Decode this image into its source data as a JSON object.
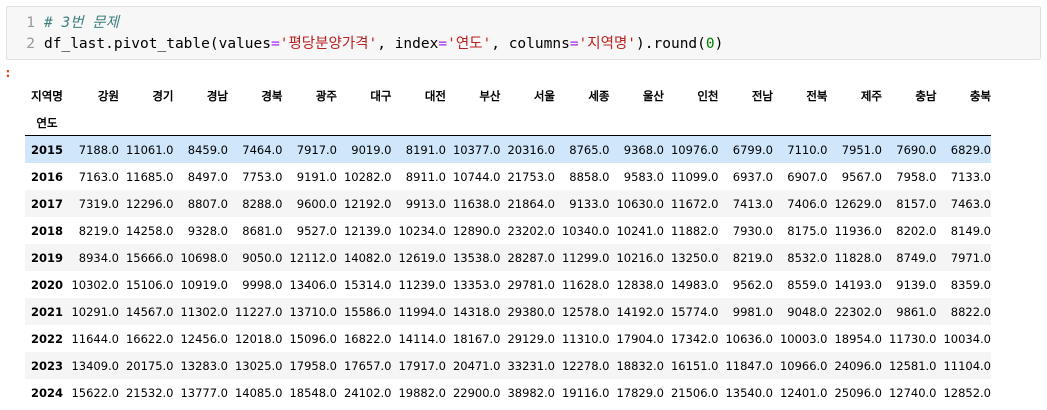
{
  "code": {
    "line_numbers": [
      "1",
      "2"
    ],
    "comment": "# 3번 문제",
    "line2": {
      "obj": "df_last",
      "dot1": ".",
      "method": "pivot_table",
      "open": "(",
      "kw_values": "values",
      "eq": "=",
      "s_values": "'평당분양가격'",
      "comma1": ", ",
      "kw_index": "index",
      "s_index": "'연도'",
      "comma2": ", ",
      "kw_columns": "columns",
      "s_columns": "'지역명'",
      "close": ")",
      "dot2": ".",
      "round": "round",
      "open2": "(",
      "num": "0",
      "close2": ")"
    }
  },
  "output_prompt": ":",
  "table": {
    "columns_name": "지역명",
    "index_name": "연도",
    "columns": [
      "강원",
      "경기",
      "경남",
      "경북",
      "광주",
      "대구",
      "대전",
      "부산",
      "서울",
      "세종",
      "울산",
      "인천",
      "전남",
      "전북",
      "제주",
      "충남",
      "충북"
    ],
    "highlighted_row": "2015",
    "rows": [
      {
        "index": "2015",
        "values": [
          "7188.0",
          "11061.0",
          "8459.0",
          "7464.0",
          "7917.0",
          "9019.0",
          "8191.0",
          "10377.0",
          "20316.0",
          "8765.0",
          "9368.0",
          "10976.0",
          "6799.0",
          "7110.0",
          "7951.0",
          "7690.0",
          "6829.0"
        ]
      },
      {
        "index": "2016",
        "values": [
          "7163.0",
          "11685.0",
          "8497.0",
          "7753.0",
          "9191.0",
          "10282.0",
          "8911.0",
          "10744.0",
          "21753.0",
          "8858.0",
          "9583.0",
          "11099.0",
          "6937.0",
          "6907.0",
          "9567.0",
          "7958.0",
          "7133.0"
        ]
      },
      {
        "index": "2017",
        "values": [
          "7319.0",
          "12296.0",
          "8807.0",
          "8288.0",
          "9600.0",
          "12192.0",
          "9913.0",
          "11638.0",
          "21864.0",
          "9133.0",
          "10630.0",
          "11672.0",
          "7413.0",
          "7406.0",
          "12629.0",
          "8157.0",
          "7463.0"
        ]
      },
      {
        "index": "2018",
        "values": [
          "8219.0",
          "14258.0",
          "9328.0",
          "8681.0",
          "9527.0",
          "12139.0",
          "10234.0",
          "12890.0",
          "23202.0",
          "10340.0",
          "10241.0",
          "11882.0",
          "7930.0",
          "8175.0",
          "11936.0",
          "8202.0",
          "8149.0"
        ]
      },
      {
        "index": "2019",
        "values": [
          "8934.0",
          "15666.0",
          "10698.0",
          "9050.0",
          "12112.0",
          "14082.0",
          "12619.0",
          "13538.0",
          "28287.0",
          "11299.0",
          "10216.0",
          "13250.0",
          "8219.0",
          "8532.0",
          "11828.0",
          "8749.0",
          "7971.0"
        ]
      },
      {
        "index": "2020",
        "values": [
          "10302.0",
          "15106.0",
          "10919.0",
          "9998.0",
          "13406.0",
          "15314.0",
          "11239.0",
          "13353.0",
          "29781.0",
          "11628.0",
          "12838.0",
          "14983.0",
          "9562.0",
          "8559.0",
          "14193.0",
          "9139.0",
          "8359.0"
        ]
      },
      {
        "index": "2021",
        "values": [
          "10291.0",
          "14567.0",
          "11302.0",
          "11227.0",
          "13710.0",
          "15586.0",
          "11994.0",
          "14318.0",
          "29380.0",
          "12578.0",
          "14192.0",
          "15774.0",
          "9981.0",
          "9048.0",
          "22302.0",
          "9861.0",
          "8822.0"
        ]
      },
      {
        "index": "2022",
        "values": [
          "11644.0",
          "16622.0",
          "12456.0",
          "12018.0",
          "15096.0",
          "16822.0",
          "14114.0",
          "18167.0",
          "29129.0",
          "11310.0",
          "17904.0",
          "17342.0",
          "10636.0",
          "10003.0",
          "18954.0",
          "11730.0",
          "10034.0"
        ]
      },
      {
        "index": "2023",
        "values": [
          "13409.0",
          "20175.0",
          "13283.0",
          "13025.0",
          "17958.0",
          "17657.0",
          "17917.0",
          "20471.0",
          "33231.0",
          "12278.0",
          "18832.0",
          "16151.0",
          "11847.0",
          "10966.0",
          "24096.0",
          "12581.0",
          "11104.0"
        ]
      },
      {
        "index": "2024",
        "values": [
          "15622.0",
          "21532.0",
          "13777.0",
          "14085.0",
          "18548.0",
          "24102.0",
          "19882.0",
          "22900.0",
          "38982.0",
          "19116.0",
          "17829.0",
          "21506.0",
          "13540.0",
          "12401.0",
          "25096.0",
          "12740.0",
          "12852.0"
        ]
      }
    ]
  }
}
